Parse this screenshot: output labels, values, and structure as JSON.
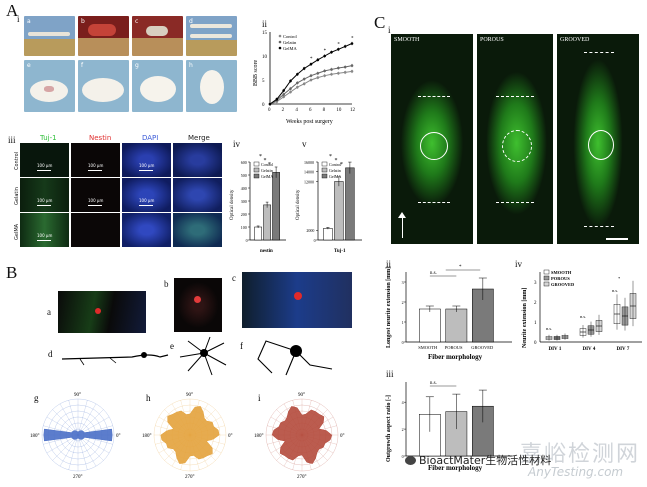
{
  "panels": {
    "A": {
      "label": "A",
      "i": {
        "label": "i",
        "photo_tags": [
          "a",
          "b",
          "c",
          "d",
          "e",
          "f",
          "g",
          "h"
        ]
      },
      "ii": {
        "label": "ii",
        "chart_data": {
          "type": "line",
          "title": "",
          "xlabel": "Weeks post surgery",
          "ylabel": "BBB score",
          "x": [
            0,
            1,
            2,
            3,
            4,
            5,
            6,
            7,
            8,
            9,
            10,
            11,
            12
          ],
          "xticks": [
            "0",
            "2",
            "4",
            "6",
            "8",
            "10",
            "12"
          ],
          "yticks": [
            "0",
            "5",
            "10",
            "15"
          ],
          "ylim": [
            0,
            15
          ],
          "legend": [
            "Control",
            "Gelatin",
            "GelMA"
          ],
          "series": [
            {
              "name": "Control",
              "values": [
                0,
                0.5,
                1.5,
                2.5,
                3.5,
                4.2,
                5.0,
                5.5,
                5.9,
                6.2,
                6.4,
                6.6,
                6.8
              ]
            },
            {
              "name": "Gelatin",
              "values": [
                0,
                0.8,
                2.0,
                3.2,
                4.4,
                5.2,
                5.9,
                6.4,
                6.9,
                7.2,
                7.5,
                7.7,
                8.0
              ]
            },
            {
              "name": "GelMA",
              "values": [
                0,
                1.0,
                2.8,
                4.8,
                6.2,
                7.4,
                8.3,
                9.2,
                10.0,
                10.8,
                11.4,
                12.0,
                12.6
              ]
            }
          ],
          "significance": "*"
        }
      },
      "iii": {
        "label": "iii",
        "col_headers": [
          "Tuj-1",
          "Nestin",
          "DAPI",
          "Merge"
        ],
        "row_headers": [
          "Control",
          "Gelatin",
          "GelMA"
        ],
        "scale_text": "100 μm"
      },
      "iv": {
        "label": "iv",
        "chart_data": {
          "type": "bar",
          "xlabel": "nestin",
          "ylabel": "Optical density",
          "categories": [
            "Control",
            "Gelatin",
            "GelMA"
          ],
          "values": [
            100,
            270,
            520
          ],
          "yticks": [
            "0",
            "100",
            "200",
            "300",
            "400",
            "500",
            "600"
          ],
          "ylim": [
            0,
            600
          ],
          "legend": [
            "Control",
            "Gelatin",
            "GelMA"
          ],
          "colors": [
            "#ffffff",
            "#bdbdbd",
            "#7a7a7a"
          ],
          "significance": [
            "*",
            "*",
            "*"
          ]
        }
      },
      "v": {
        "label": "v",
        "chart_data": {
          "type": "bar",
          "xlabel": "Tuj-1",
          "ylabel": "Optical density",
          "categories": [
            "Control",
            "Gelatin",
            "GelMA"
          ],
          "values": [
            2400,
            12000,
            14800
          ],
          "yticks": [
            "0",
            "2000",
            "12000",
            "14000",
            "16000"
          ],
          "ylim": [
            0,
            16000
          ],
          "legend": [
            "Control",
            "Gelatin",
            "GelMA"
          ],
          "colors": [
            "#ffffff",
            "#bdbdbd",
            "#7a7a7a"
          ],
          "significance": [
            "*",
            "*",
            "*"
          ]
        }
      }
    },
    "B": {
      "label": "B",
      "sub_labels": [
        "a",
        "b",
        "c",
        "d",
        "e",
        "f",
        "g",
        "h",
        "i"
      ],
      "polar": [
        {
          "angles": [
            "90°",
            "0°",
            "180°",
            "270°"
          ],
          "color": "#4a6fc6"
        },
        {
          "angles": [
            "90°",
            "0°",
            "180°",
            "270°"
          ],
          "color": "#e3a23c"
        },
        {
          "angles": [
            "90°",
            "0°",
            "180°",
            "270°"
          ],
          "color": "#b44a3c"
        }
      ]
    },
    "C": {
      "label": "C",
      "i": {
        "label": "i",
        "image_labels": [
          "SMOOTH",
          "POROUS",
          "GROOVED"
        ]
      },
      "ii": {
        "label": "ii",
        "chart_data": {
          "type": "bar",
          "xlabel": "Fiber morphology",
          "ylabel": "Longest neurite extension [mm]",
          "categories": [
            "SMOOTH",
            "POROUS",
            "GROOVED"
          ],
          "values": [
            1.65,
            1.65,
            2.65
          ],
          "errors": [
            0.15,
            0.15,
            0.55
          ],
          "yticks": [
            "0",
            "1",
            "2",
            "3"
          ],
          "ylim": [
            0,
            3.5
          ],
          "colors": [
            "#ffffff",
            "#bdbdbd",
            "#7a7a7a"
          ],
          "annotations": [
            "n.s.",
            "*"
          ]
        }
      },
      "iii": {
        "label": "iii",
        "chart_data": {
          "type": "bar",
          "xlabel": "Fiber morphology",
          "ylabel": "Outgrowth aspect ratio [-]",
          "categories": [
            "SMOOTH",
            "POROUS",
            "GROOVED"
          ],
          "values": [
            3.1,
            3.3,
            3.7
          ],
          "errors": [
            1.3,
            1.3,
            1.2
          ],
          "yticks": [
            "0",
            "2",
            "4"
          ],
          "ylim": [
            0,
            5.5
          ],
          "colors": [
            "#ffffff",
            "#bdbdbd",
            "#7a7a7a"
          ],
          "annotations": [
            "n.s."
          ]
        }
      },
      "iv": {
        "label": "iv",
        "chart_data": {
          "type": "box",
          "ylabel": "Neurite extension [mm]",
          "categories": [
            "DIV 1",
            "DIV 4",
            "DIV 7"
          ],
          "yticks": [
            "0",
            "1",
            "2",
            "3"
          ],
          "ylim": [
            0,
            3.5
          ],
          "legend": [
            "SMOOTH",
            "POROUS",
            "GROOVED"
          ],
          "series": [
            {
              "name": "SMOOTH",
              "medians": [
                0.2,
                0.5,
                1.4
              ]
            },
            {
              "name": "POROUS",
              "medians": [
                0.2,
                0.6,
                1.3
              ]
            },
            {
              "name": "GROOVED",
              "medians": [
                0.25,
                0.8,
                1.8
              ]
            }
          ],
          "annotations": [
            "n.s.",
            "n.s.",
            "n.s.",
            "*"
          ]
        }
      }
    }
  },
  "watermark": {
    "line1": "嘉峪检测网",
    "line2": "AnyTesting.com",
    "wechat": "BioactMater生物活性材料"
  }
}
